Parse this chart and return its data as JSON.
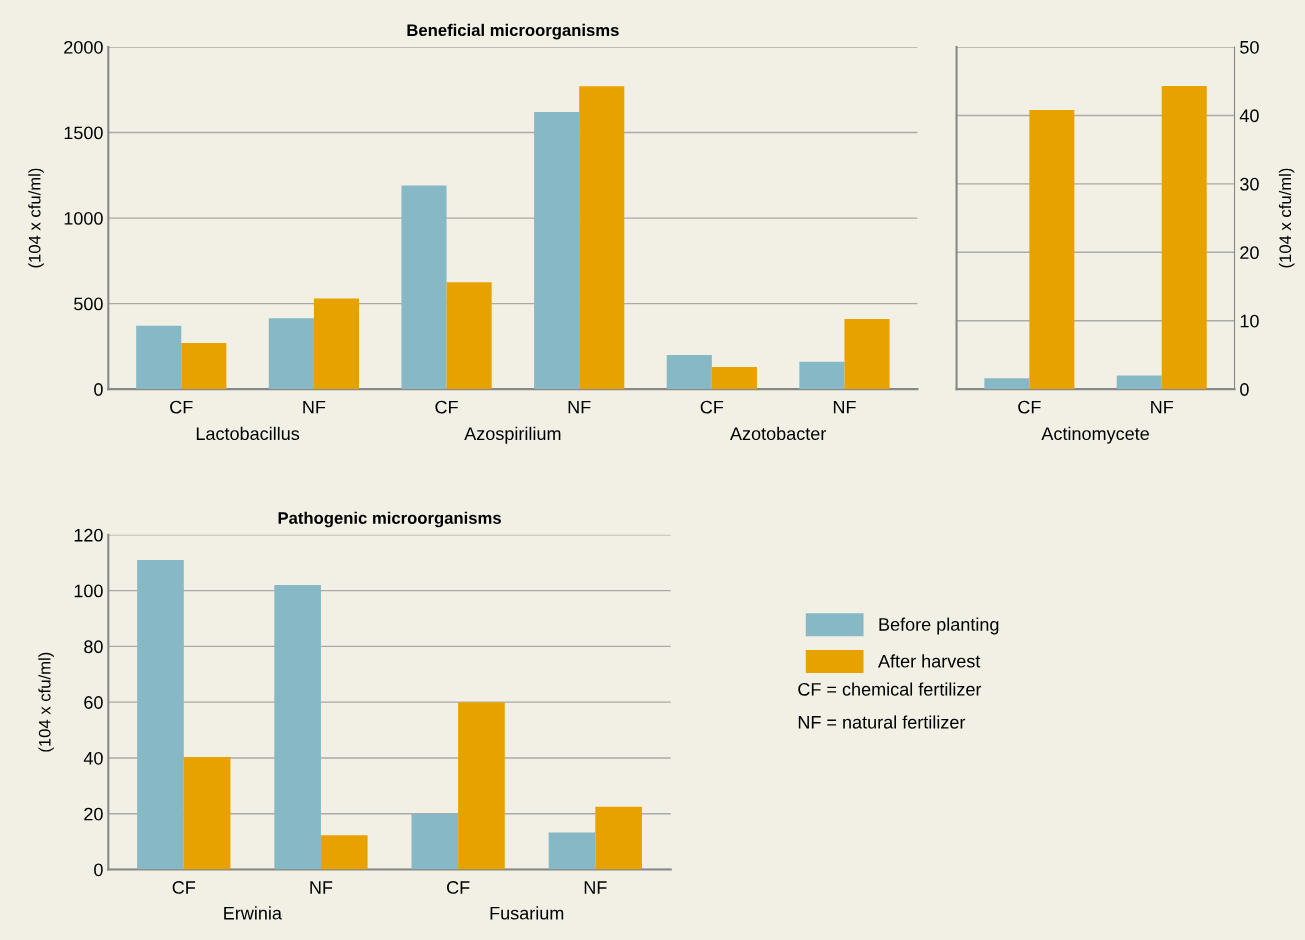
{
  "chart_data": [
    {
      "type": "bar",
      "title": "Beneficial microorganisms",
      "ylabel": "(104 x cfu/ml)",
      "categories": [
        "CF",
        "NF",
        "CF",
        "NF",
        "CF",
        "NF"
      ],
      "annotations": [
        "Lactobacillus",
        "Azospirilium",
        "Azotobacter"
      ],
      "series": [
        {
          "color": "#87b8c6",
          "values": [
            370,
            415,
            1190,
            1620,
            200,
            160
          ]
        },
        {
          "color": "#e8a200",
          "values": [
            270,
            530,
            625,
            1770,
            130,
            410
          ]
        }
      ],
      "ylim": [
        0,
        2000
      ],
      "yticks": [
        0,
        500,
        1000,
        1500,
        2000
      ],
      "grid": "y"
    },
    {
      "type": "bar",
      "y2label": "(104 x cfu/ml)",
      "categories": [
        "CF",
        "NF"
      ],
      "annotations": [
        "Actinomycete"
      ],
      "series": [
        {
          "color": "#87b8c6",
          "values": [
            1.6,
            2
          ],
          "axis": "y2"
        },
        {
          "color": "#e8a200",
          "values": [
            40.8,
            44.3
          ],
          "axis": "y2"
        }
      ],
      "y2lim": [
        0,
        50
      ],
      "y2ticks": [
        0,
        10,
        20,
        30,
        40,
        50
      ],
      "grid": "y"
    },
    {
      "type": "bar",
      "title": "Pathogenic microorganisms",
      "ylabel": "(104 x cfu/ml)",
      "categories": [
        "CF",
        "NF",
        "CF",
        "NF"
      ],
      "annotations": [
        "Erwinia",
        "Fusarium",
        "CF = chemical fertilizer",
        "NF = natural fertilizer"
      ],
      "series": [
        {
          "name": "Before planting",
          "color": "#87b8c6",
          "values": [
            111,
            102,
            20,
            13.3
          ]
        },
        {
          "name": "After harvest",
          "color": "#e8a200",
          "values": [
            40.3,
            12.3,
            60,
            22.5
          ]
        }
      ],
      "ylim": [
        0,
        120
      ],
      "yticks": [
        0,
        20,
        40,
        60,
        80,
        100,
        120
      ],
      "grid": "y",
      "legend": "right"
    }
  ]
}
